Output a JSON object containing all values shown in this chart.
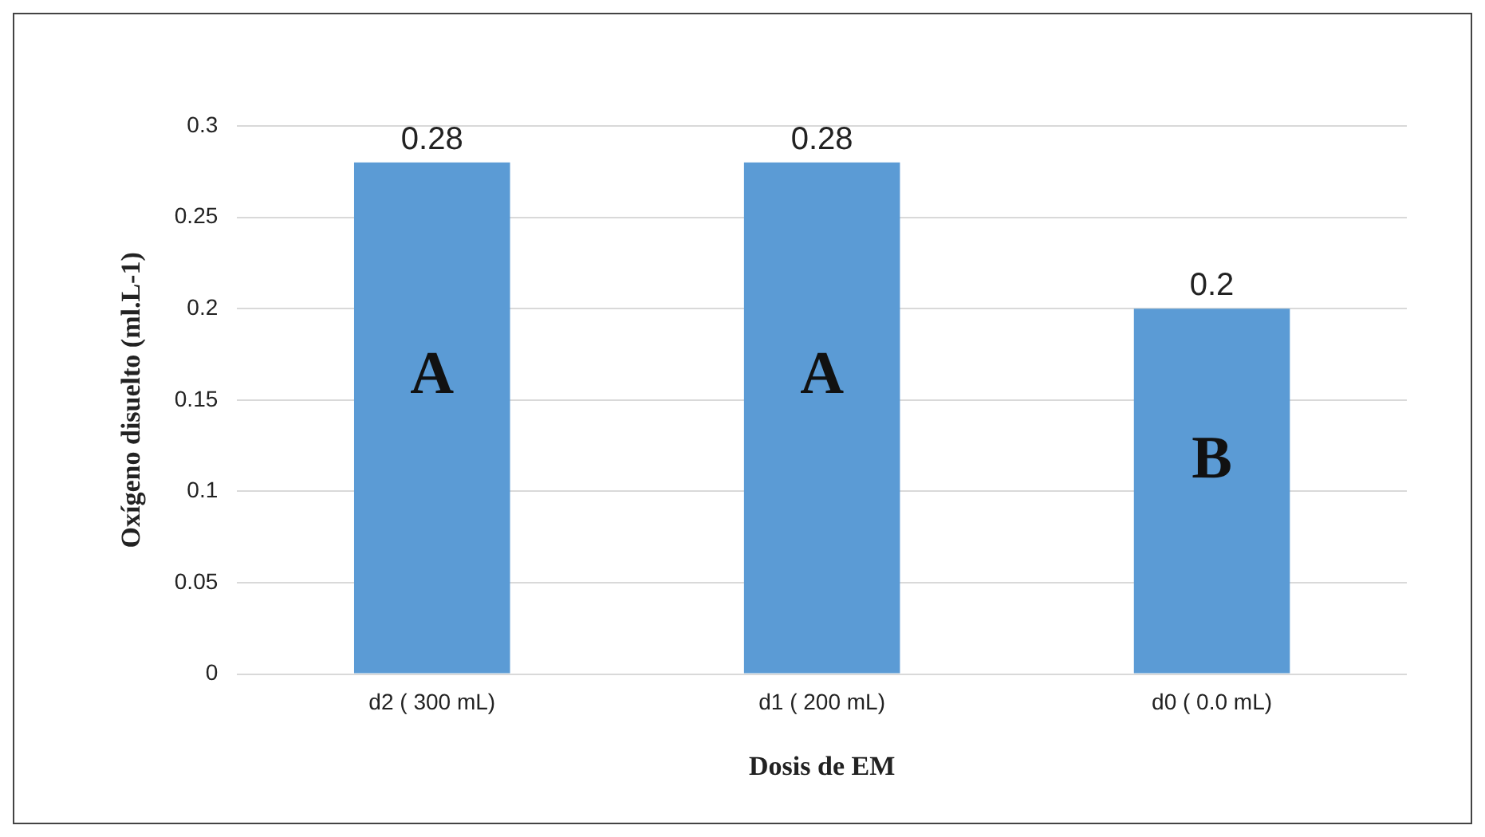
{
  "chart_data": {
    "type": "bar",
    "xlabel": "Dosis de EM",
    "ylabel": "Oxígeno disuelto (ml.L-1)",
    "categories": [
      "d2 ( 300 mL)",
      "d1 ( 200 mL)",
      "d0 ( 0.0 mL)"
    ],
    "values": [
      0.28,
      0.28,
      0.2
    ],
    "color": "#5b9bd5",
    "ylim": [
      0,
      0.3
    ],
    "yticks": [
      0,
      0.05,
      0.1,
      0.15,
      0.2,
      0.25,
      0.3
    ],
    "grid": "y",
    "legend": false,
    "data_labels": true,
    "annotations": [
      "A",
      "A",
      "B"
    ]
  }
}
